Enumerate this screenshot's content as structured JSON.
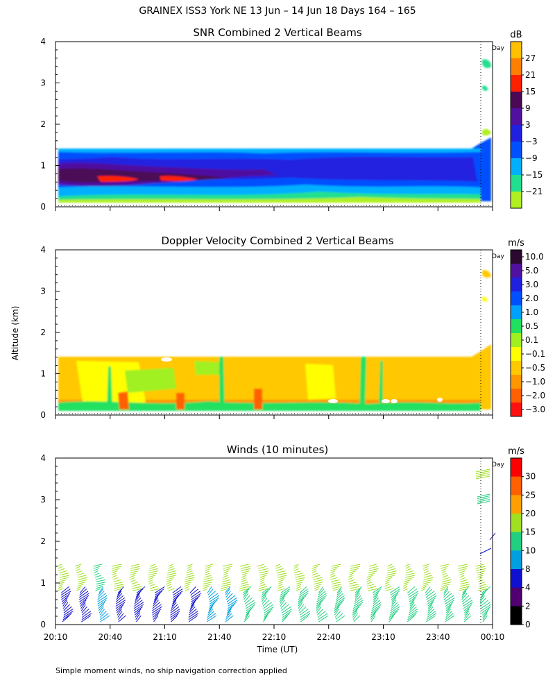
{
  "title": "GRAINEX ISS3 York NE  13 Jun – 14 Jun 18 Days 164 – 165",
  "ylabel_shared": "Altitude (km)",
  "xlabel": "Time (UT)",
  "footnote": "Simple moment winds, no ship navigation correction applied",
  "day_marker": "Day",
  "chart_data": [
    {
      "type": "heatmap",
      "title": "SNR Combined 2 Vertical Beams",
      "ylabel": "Altitude (km)",
      "ylim": [
        0,
        4
      ],
      "yticks": [
        "0",
        "1",
        "2",
        "3",
        "4"
      ],
      "xlim_time": [
        "20:10",
        "00:10"
      ],
      "colorbar": {
        "unit": "dB",
        "labels": [
          "27",
          "21",
          "15",
          "9",
          "3",
          "−3",
          "−9",
          "−15",
          "−21"
        ],
        "colors": [
          "#FFC000",
          "#FF8000",
          "#FF2000",
          "#4B0855",
          "#5010A0",
          "#2020E0",
          "#0050FF",
          "#00B0FF",
          "#20E090",
          "#B0F020"
        ]
      },
      "notes": "Echo layer from ~0.1 to ~1.4 km between 20:10 and 23:55; strongest near 0.6–0.8 km around 20:10–21:30"
    },
    {
      "type": "heatmap",
      "title": "Doppler Velocity Combined 2 Vertical Beams",
      "ylabel": "Altitude (km)",
      "ylim": [
        0,
        4
      ],
      "yticks": [
        "0",
        "1",
        "2",
        "3",
        "4"
      ],
      "xlim_time": [
        "20:10",
        "00:10"
      ],
      "colorbar": {
        "unit": "m/s",
        "labels": [
          "10.0",
          "5.0",
          "3.0",
          "2.0",
          "1.0",
          "0.5",
          "0.1",
          "−0.1",
          "−0.5",
          "−1.0",
          "−2.0",
          "−3.0"
        ],
        "colors": [
          "#2A0830",
          "#5010A0",
          "#2020E0",
          "#0050FF",
          "#00A0FF",
          "#20E060",
          "#A0F020",
          "#FFFF00",
          "#FFC800",
          "#FF9800",
          "#FF6000",
          "#FF1010"
        ]
      },
      "notes": "Mostly −0.1 to −1.0 m/s (yellow/orange) from 0.1 to 1.4 km"
    },
    {
      "type": "barbs",
      "title": "Winds (10 minutes)",
      "ylabel": "Altitude (km)",
      "ylim": [
        0,
        4
      ],
      "yticks": [
        "0",
        "1",
        "2",
        "3",
        "4"
      ],
      "xticks": [
        "20:10",
        "20:40",
        "21:10",
        "21:40",
        "22:10",
        "22:40",
        "23:10",
        "23:40",
        "00:10"
      ],
      "interval_minutes": 10,
      "colorbar": {
        "unit": "m/s",
        "labels": [
          "30",
          "25",
          "20",
          "15",
          "10",
          "8",
          "4",
          "2",
          "0"
        ],
        "colors": [
          "#FF0000",
          "#FF6000",
          "#FFA000",
          "#A0E020",
          "#20D080",
          "#00A0E0",
          "#1010D0",
          "#500070",
          "#000000"
        ]
      },
      "profiles_speed_class_low": [
        4,
        4,
        8,
        4,
        4,
        4,
        4,
        4,
        8,
        8,
        10,
        10,
        10,
        10,
        10,
        10,
        10,
        10,
        10,
        10,
        10,
        10,
        10,
        10
      ],
      "profiles_speed_class_high": [
        15,
        15,
        10,
        15,
        15,
        15,
        15,
        15,
        15,
        15,
        15,
        15,
        15,
        15,
        15,
        15,
        15,
        15,
        15,
        15,
        15,
        15,
        15,
        15
      ]
    }
  ]
}
